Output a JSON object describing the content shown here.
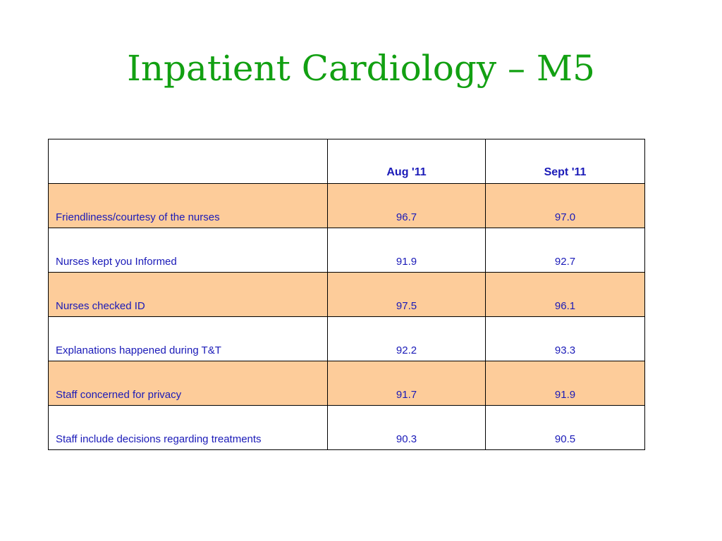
{
  "title": "Inpatient Cardiology – M5",
  "table": {
    "header": [
      "",
      "Aug '11",
      "Sept '11"
    ],
    "rows": [
      {
        "label": "Friendliness/courtesy of the nurses",
        "aug": "96.7",
        "sept": "97.0"
      },
      {
        "label": "Nurses kept you Informed",
        "aug": "91.9",
        "sept": "92.7"
      },
      {
        "label": "Nurses checked ID",
        "aug": "97.5",
        "sept": "96.1"
      },
      {
        "label": "Explanations happened during T&T",
        "aug": "92.2",
        "sept": "93.3"
      },
      {
        "label": "Staff concerned for privacy",
        "aug": "91.7",
        "sept": "91.9"
      },
      {
        "label": "Staff include decisions regarding treatments",
        "aug": "90.3",
        "sept": "90.5"
      }
    ]
  },
  "colors": {
    "title": "#12a012",
    "text": "#1a1ab8",
    "shaded_row": "#fdcc9a"
  }
}
